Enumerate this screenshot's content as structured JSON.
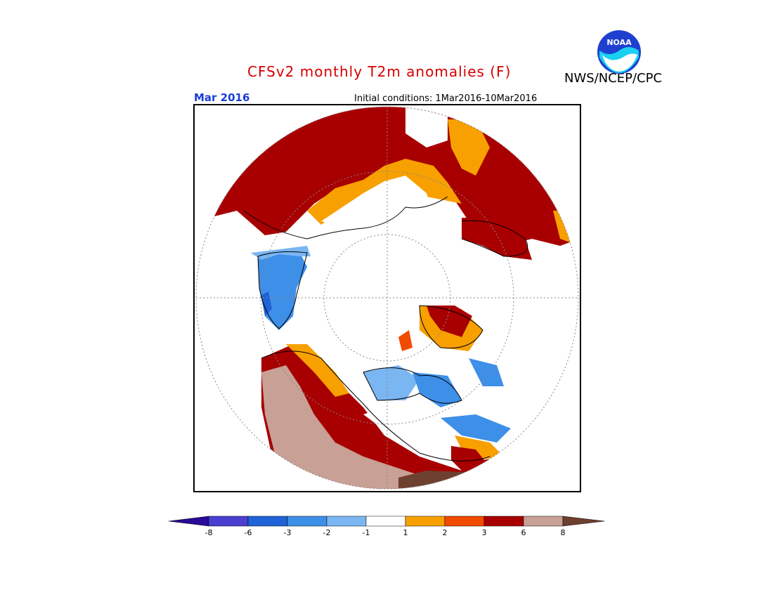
{
  "header": {
    "title": "CFSv2 monthly T2m anomalies (F)",
    "org": "NWS/NCEP/CPC",
    "month": "Mar 2016",
    "initial_conditions": "Initial conditions: 1Mar2016-10Mar2016"
  },
  "logo": {
    "text": "NOAA"
  },
  "colorbar": {
    "labels": [
      "-8",
      "-6",
      "-3",
      "-2",
      "-1",
      "1",
      "2",
      "3",
      "6",
      "8"
    ],
    "colors": [
      "#2a0a96",
      "#4a3fd0",
      "#1f63d6",
      "#3e8fe8",
      "#7ab6f2",
      "#ffffff",
      "#f7a000",
      "#f24a00",
      "#a80000",
      "#c8a095",
      "#6e4030"
    ]
  },
  "map": {
    "colors": {
      "red": "#a80000",
      "orange": "#f7a000",
      "orange_red": "#f24a00",
      "tan": "#c8a095",
      "brown": "#6e4030",
      "blue": "#3e8fe8",
      "light_blue": "#7ab6f2",
      "dark_blue": "#1f63d6"
    }
  }
}
